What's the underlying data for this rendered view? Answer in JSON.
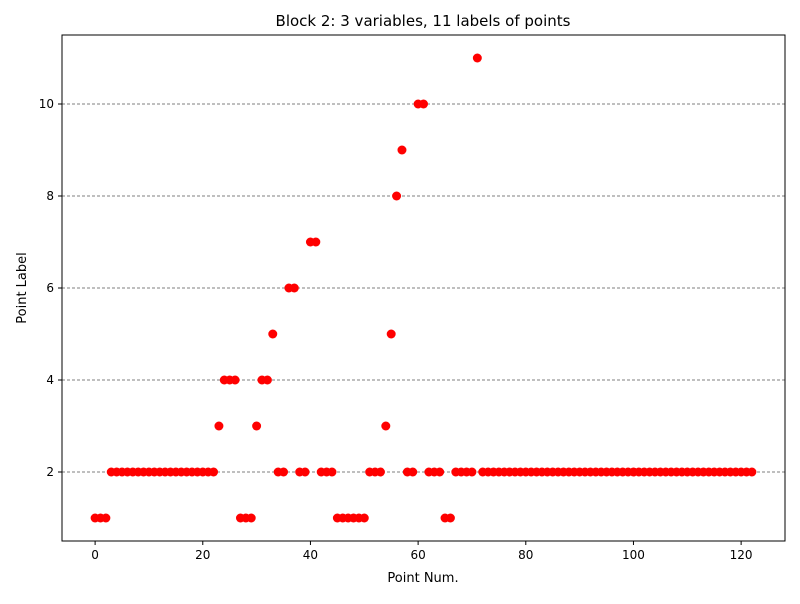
{
  "chart_data": {
    "type": "scatter",
    "title": "Block 2: 3 variables, 11 labels of points",
    "xlabel": "Point Num.",
    "ylabel": "Point Label",
    "xlim": [
      -6.15,
      128.15
    ],
    "ylim": [
      0.5,
      11.5
    ],
    "xticks": [
      0,
      20,
      40,
      60,
      80,
      100,
      120
    ],
    "yticks": [
      2,
      4,
      6,
      8,
      10
    ],
    "grid": "y",
    "marker_color": "#ff0000",
    "x": [
      0,
      1,
      2,
      3,
      4,
      5,
      6,
      7,
      8,
      9,
      10,
      11,
      12,
      13,
      14,
      15,
      16,
      17,
      18,
      19,
      20,
      21,
      22,
      23,
      24,
      25,
      26,
      27,
      28,
      29,
      30,
      31,
      32,
      33,
      34,
      35,
      36,
      37,
      38,
      39,
      40,
      41,
      42,
      43,
      44,
      45,
      46,
      47,
      48,
      49,
      50,
      51,
      52,
      53,
      54,
      55,
      56,
      57,
      58,
      59,
      60,
      61,
      62,
      63,
      64,
      65,
      66,
      67,
      68,
      69,
      70,
      71,
      72,
      73,
      74,
      75,
      76,
      77,
      78,
      79,
      80,
      81,
      82,
      83,
      84,
      85,
      86,
      87,
      88,
      89,
      90,
      91,
      92,
      93,
      94,
      95,
      96,
      97,
      98,
      99,
      100,
      101,
      102,
      103,
      104,
      105,
      106,
      107,
      108,
      109,
      110,
      111,
      112,
      113,
      114,
      115,
      116,
      117,
      118,
      119,
      120,
      121,
      122
    ],
    "y": [
      1,
      1,
      1,
      2,
      2,
      2,
      2,
      2,
      2,
      2,
      2,
      2,
      2,
      2,
      2,
      2,
      2,
      2,
      2,
      2,
      2,
      2,
      2,
      3,
      4,
      4,
      4,
      1,
      1,
      1,
      3,
      4,
      4,
      5,
      2,
      2,
      6,
      6,
      2,
      2,
      7,
      7,
      2,
      2,
      2,
      1,
      1,
      1,
      1,
      1,
      1,
      2,
      2,
      2,
      3,
      5,
      8,
      9,
      2,
      2,
      10,
      10,
      2,
      2,
      2,
      1,
      1,
      2,
      2,
      2,
      2,
      11,
      2,
      2,
      2,
      2,
      2,
      2,
      2,
      2,
      2,
      2,
      2,
      2,
      2,
      2,
      2,
      2,
      2,
      2,
      2,
      2,
      2,
      2,
      2,
      2,
      2,
      2,
      2,
      2,
      2,
      2,
      2,
      2,
      2,
      2,
      2,
      2,
      2,
      2,
      2,
      2,
      2,
      2,
      2,
      2,
      2,
      2,
      2,
      2,
      2,
      2,
      2
    ]
  }
}
